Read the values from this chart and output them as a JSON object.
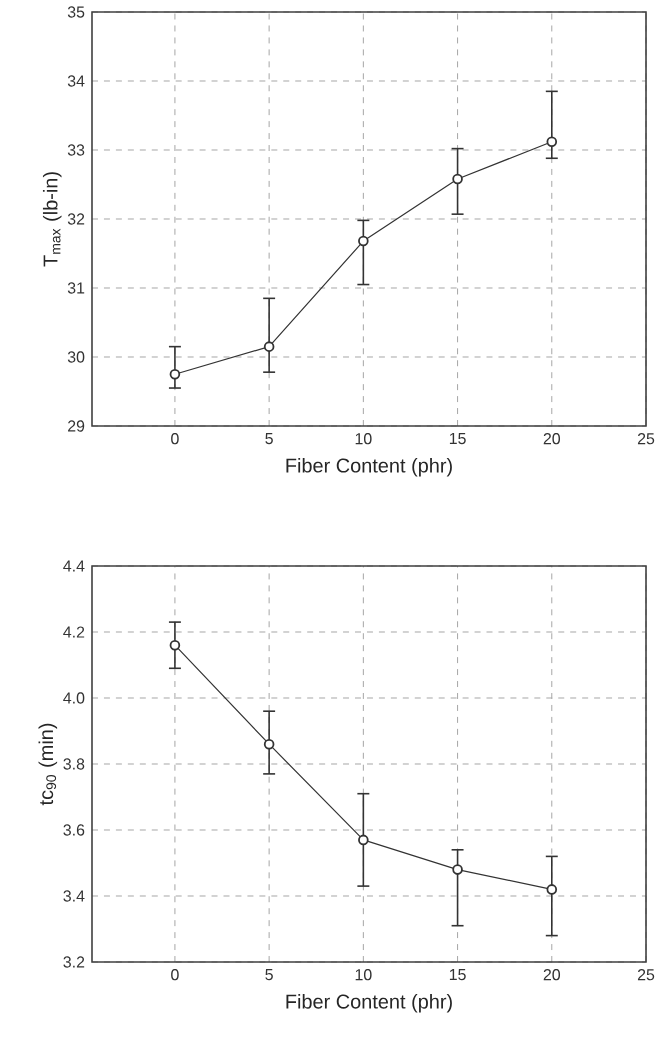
{
  "chart_data": [
    {
      "type": "line",
      "xlabel": "Fiber Content (phr)",
      "ylabel": "T$_{max}$ (lb-in)",
      "x": [
        0,
        5,
        10,
        15,
        20
      ],
      "series": [
        {
          "color": "#333333",
          "values": [
            29.75,
            30.15,
            31.68,
            32.58,
            33.12
          ],
          "errors": [
            [
              29.55,
              30.15
            ],
            [
              29.78,
              30.85
            ],
            [
              31.05,
              31.98
            ],
            [
              32.07,
              33.02
            ],
            [
              32.88,
              33.85
            ]
          ]
        }
      ],
      "xlim": [
        -4.4,
        25
      ],
      "ylim": [
        29,
        35
      ],
      "xticks": [
        0,
        5,
        10,
        15,
        20,
        25
      ],
      "yticks": [
        29,
        30,
        31,
        32,
        33,
        34,
        35
      ],
      "grid": true,
      "marker": "circle"
    },
    {
      "type": "line",
      "xlabel": "Fiber Content (phr)",
      "ylabel": "tc$_{90}$ (min)",
      "x": [
        0,
        5,
        10,
        15,
        20
      ],
      "series": [
        {
          "color": "#333333",
          "values": [
            4.16,
            3.86,
            3.57,
            3.48,
            3.42
          ],
          "errors": [
            [
              4.09,
              4.23
            ],
            [
              3.77,
              3.96
            ],
            [
              3.43,
              3.71
            ],
            [
              3.31,
              3.54
            ],
            [
              3.28,
              3.52
            ]
          ]
        }
      ],
      "xlim": [
        -4.4,
        25
      ],
      "ylim": [
        3.2,
        4.4
      ],
      "xticks": [
        0,
        5,
        10,
        15,
        20,
        25
      ],
      "yticks": [
        3.2,
        3.4,
        3.6,
        3.8,
        {
          "value": 4.0,
          "label": "4.0"
        },
        4.2,
        4.4
      ],
      "grid": true,
      "marker": "circle"
    }
  ]
}
